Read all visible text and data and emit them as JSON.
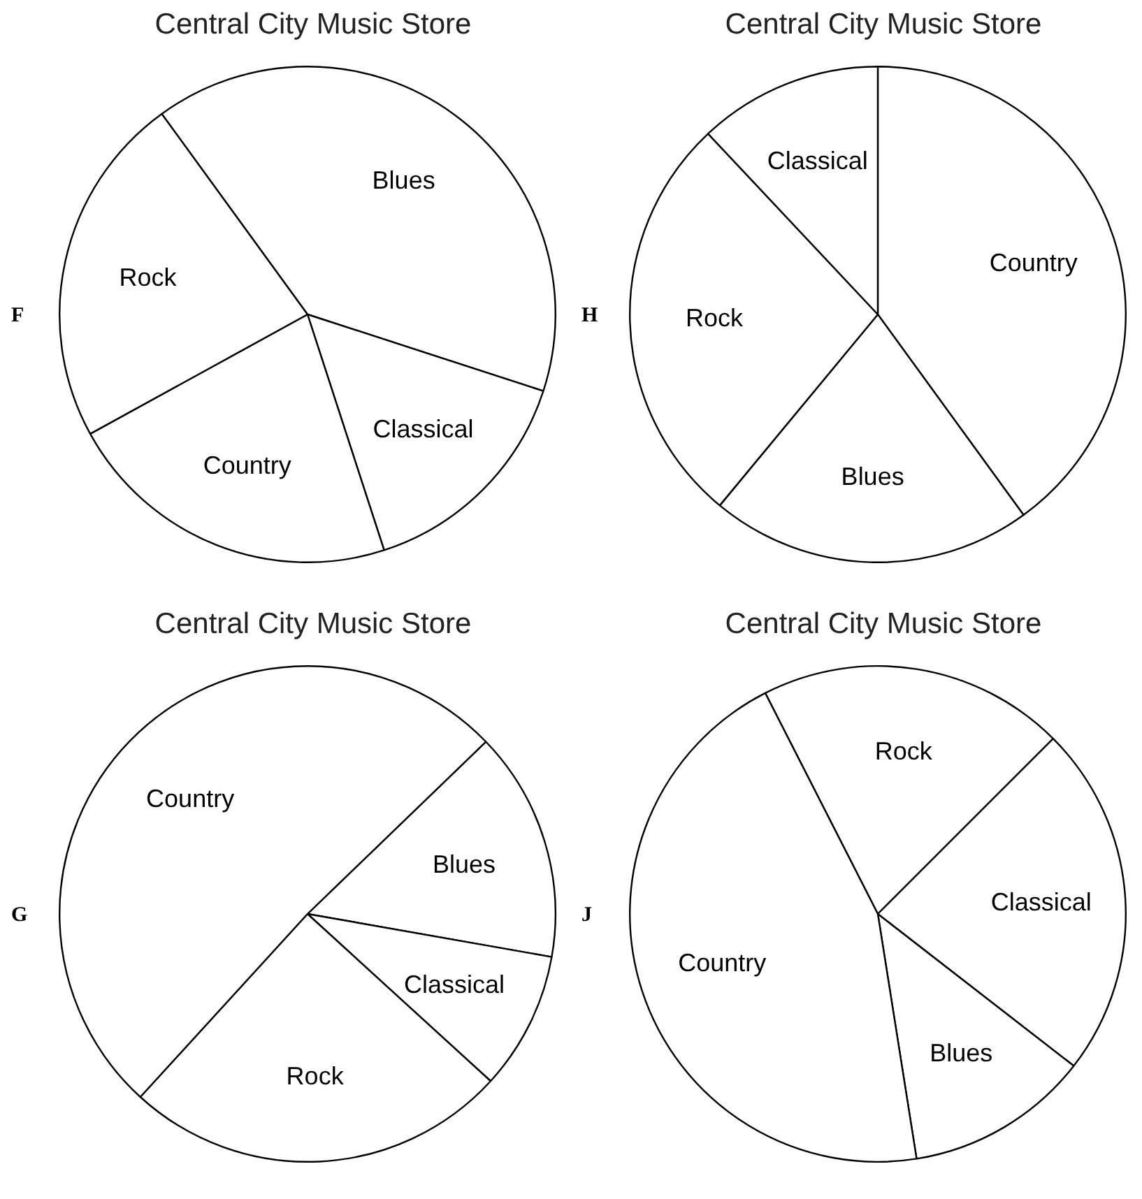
{
  "chart_data": [
    {
      "type": "pie",
      "title": "Central City Music Store",
      "annotations": [
        "F"
      ],
      "categories": [
        "Blues",
        "Classical",
        "Country",
        "Rock"
      ],
      "values": [
        40,
        15,
        22,
        23
      ],
      "colors": [
        "#ffffff",
        "#ffffff",
        "#ffffff",
        "#ffffff"
      ],
      "legend": false
    },
    {
      "type": "pie",
      "title": "Central City Music Store",
      "annotations": [
        "H"
      ],
      "categories": [
        "Country",
        "Blues",
        "Rock",
        "Classical"
      ],
      "values": [
        40,
        21,
        27,
        12
      ],
      "colors": [
        "#ffffff",
        "#ffffff",
        "#ffffff",
        "#ffffff"
      ],
      "legend": false
    },
    {
      "type": "pie",
      "title": "Central City Music Store",
      "annotations": [
        "G"
      ],
      "categories": [
        "Blues",
        "Classical",
        "Rock",
        "Country"
      ],
      "values": [
        15,
        9,
        25,
        51
      ],
      "colors": [
        "#ffffff",
        "#ffffff",
        "#ffffff",
        "#ffffff"
      ],
      "legend": false
    },
    {
      "type": "pie",
      "title": "Central City Music Store",
      "annotations": [
        "J"
      ],
      "categories": [
        "Rock",
        "Classical",
        "Blues",
        "Country"
      ],
      "values": [
        20,
        23,
        12,
        45
      ],
      "colors": [
        "#ffffff",
        "#ffffff",
        "#ffffff",
        "#ffffff"
      ],
      "legend": false
    }
  ]
}
